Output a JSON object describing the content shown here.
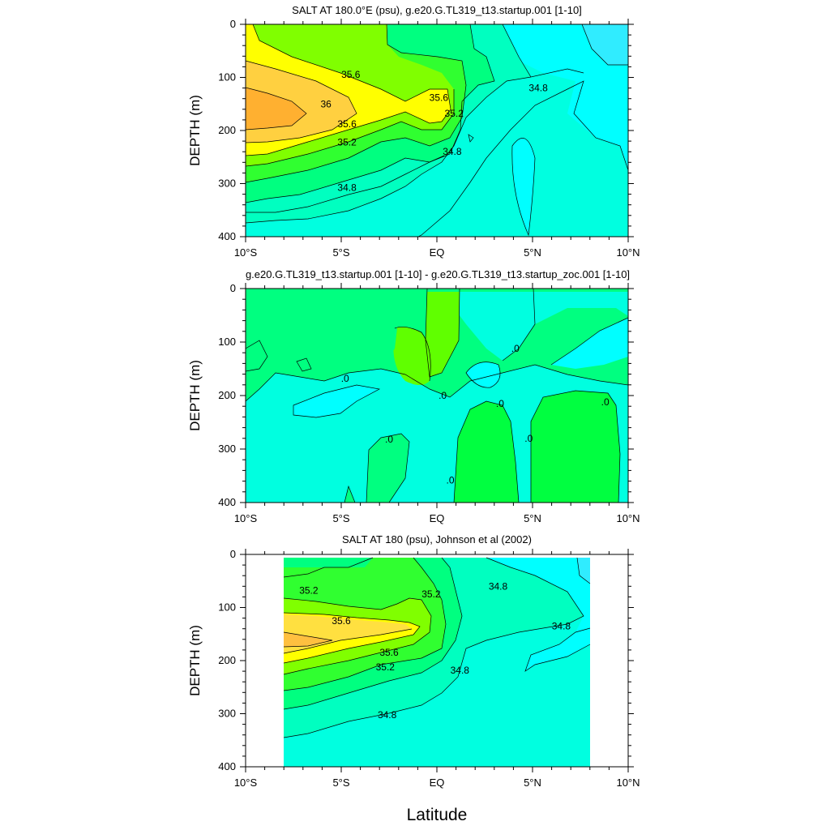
{
  "figure": {
    "xlabel": "Latitude"
  },
  "chart_data": [
    {
      "type": "heatmap",
      "title": "SALT AT 180.0°E (psu), g.e20.G.TL319_t13.startup.001 [1-10]",
      "ylabel": "DEPTH (m)",
      "xlim": [
        -10,
        10
      ],
      "ylim": [
        400,
        0
      ],
      "x_ticks": [
        -10,
        -5,
        0,
        5,
        10
      ],
      "x_tick_labels": [
        "10°S",
        "5°S",
        "EQ",
        "5°N",
        "10°N"
      ],
      "y_ticks": [
        0,
        100,
        200,
        300,
        400
      ],
      "y_tick_labels": [
        "0",
        "100",
        "200",
        "300",
        "400"
      ],
      "contour_labels": [
        {
          "text": "35.6",
          "lat": -4.5,
          "depth": 95
        },
        {
          "text": "36",
          "lat": -5.8,
          "depth": 150
        },
        {
          "text": "35.6",
          "lat": -4.7,
          "depth": 188
        },
        {
          "text": "35.2",
          "lat": -4.7,
          "depth": 222
        },
        {
          "text": "34.8",
          "lat": -4.7,
          "depth": 308
        },
        {
          "text": "35.6",
          "lat": 0.1,
          "depth": 138
        },
        {
          "text": "35.2",
          "lat": 0.9,
          "depth": 168
        },
        {
          "text": "34.8",
          "lat": 0.8,
          "depth": 240
        },
        {
          "text": "34.8",
          "lat": 5.3,
          "depth": 120
        }
      ],
      "colors": {
        "c348": "#00ffe0",
        "c349": "#00ffff",
        "c350": "#00ffc0",
        "c352": "#00ff80",
        "c354": "#30ff30",
        "c356": "#80ff00",
        "c358": "#ffff00",
        "c360": "#ffd040",
        "c362": "#ffb030"
      }
    },
    {
      "type": "heatmap",
      "title": "g.e20.G.TL319_t13.startup.001 [1-10] - g.e20.G.TL319_t13.startup_zoc.001 [1-10]",
      "ylabel": "DEPTH (m)",
      "xlim": [
        -10,
        10
      ],
      "ylim": [
        400,
        0
      ],
      "x_ticks": [
        -10,
        -5,
        0,
        5,
        10
      ],
      "x_tick_labels": [
        "10°S",
        "5°S",
        "EQ",
        "5°N",
        "10°N"
      ],
      "y_ticks": [
        0,
        100,
        200,
        300,
        400
      ],
      "y_tick_labels": [
        "0",
        "100",
        "200",
        "300",
        "400"
      ],
      "contour_labels": [
        {
          "text": ".0",
          "lat": -4.8,
          "depth": 168
        },
        {
          "text": ".0",
          "lat": 0.3,
          "depth": 200
        },
        {
          "text": ".0",
          "lat": 4.1,
          "depth": 112
        },
        {
          "text": ".0",
          "lat": 3.3,
          "depth": 215
        },
        {
          "text": ".0",
          "lat": 4.8,
          "depth": 280
        },
        {
          "text": ".0",
          "lat": 8.8,
          "depth": 212
        },
        {
          "text": ".0",
          "lat": -2.5,
          "depth": 282
        },
        {
          "text": ".0",
          "lat": 0.7,
          "depth": 358
        }
      ]
    },
    {
      "type": "heatmap",
      "title": "SALT AT 180 (psu), Johnson et al (2002)",
      "ylabel": "DEPTH (m)",
      "xlim": [
        -10,
        10
      ],
      "ylim": [
        400,
        0
      ],
      "x_ticks": [
        -10,
        -5,
        0,
        5,
        10
      ],
      "x_tick_labels": [
        "10°S",
        "5°S",
        "EQ",
        "5°N",
        "10°N"
      ],
      "y_ticks": [
        0,
        100,
        200,
        300,
        400
      ],
      "y_tick_labels": [
        "0",
        "100",
        "200",
        "300",
        "400"
      ],
      "data_extent": [
        -8,
        8
      ],
      "contour_labels": [
        {
          "text": "35.2",
          "lat": -6.7,
          "depth": 68
        },
        {
          "text": "35.6",
          "lat": -5.0,
          "depth": 125
        },
        {
          "text": "35.6",
          "lat": -2.5,
          "depth": 185
        },
        {
          "text": "35.2",
          "lat": -2.7,
          "depth": 212
        },
        {
          "text": "34.8",
          "lat": -2.6,
          "depth": 302
        },
        {
          "text": "35.2",
          "lat": -0.3,
          "depth": 75
        },
        {
          "text": "34.8",
          "lat": 1.2,
          "depth": 218
        },
        {
          "text": "34.8",
          "lat": 3.2,
          "depth": 60
        },
        {
          "text": "34.8",
          "lat": 6.5,
          "depth": 135
        }
      ]
    }
  ]
}
